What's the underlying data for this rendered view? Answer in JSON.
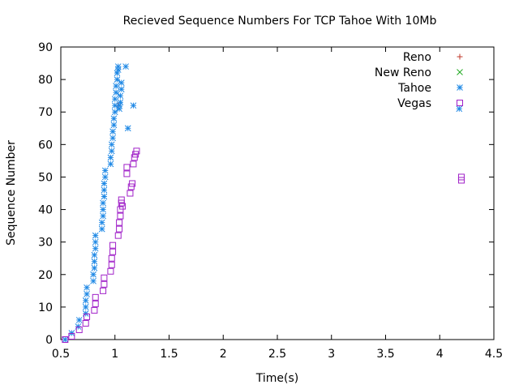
{
  "chart_data": {
    "type": "scatter",
    "title": "Recieved Sequence Numbers For TCP Tahoe With  10Mb",
    "xlabel": "Time(s)",
    "ylabel": "Sequence Number",
    "xlim": [
      0.5,
      4.5
    ],
    "ylim": [
      0,
      90
    ],
    "xticks": [
      0.5,
      1,
      1.5,
      2,
      2.5,
      3,
      3.5,
      4,
      4.5
    ],
    "xtick_labels": [
      "0.5",
      "1",
      "1.5",
      "2",
      "2.5",
      "3",
      "3.5",
      "4",
      "4.5"
    ],
    "yticks": [
      0,
      10,
      20,
      30,
      40,
      50,
      60,
      70,
      80,
      90
    ],
    "ytick_labels": [
      "0",
      "10",
      "20",
      "30",
      "40",
      "50",
      "60",
      "70",
      "80",
      "90"
    ],
    "legend_position": "top-right",
    "series": [
      {
        "name": "Reno",
        "marker": "plus",
        "color": "#c0392b",
        "x": [
          1.03
        ],
        "y": [
          72
        ]
      },
      {
        "name": "New Reno",
        "marker": "cross",
        "color": "#22aa22",
        "x": [],
        "y": []
      },
      {
        "name": "Tahoe",
        "marker": "star",
        "color": "#1e88e5",
        "x": [
          0.54,
          0.6,
          0.66,
          0.67,
          0.73,
          0.73,
          0.73,
          0.74,
          0.74,
          0.8,
          0.8,
          0.81,
          0.81,
          0.81,
          0.82,
          0.82,
          0.82,
          0.88,
          0.88,
          0.89,
          0.89,
          0.89,
          0.9,
          0.9,
          0.9,
          0.91,
          0.91,
          0.96,
          0.96,
          0.97,
          0.97,
          0.98,
          0.98,
          0.99,
          0.99,
          1.0,
          1.0,
          1.0,
          1.01,
          1.01,
          1.02,
          1.02,
          1.03,
          1.03,
          1.04,
          1.04,
          1.05,
          1.05,
          1.06,
          1.06,
          1.1,
          1.12,
          1.17,
          4.18
        ],
        "y": [
          0,
          2,
          4,
          6,
          8,
          10,
          12,
          14,
          16,
          18,
          20,
          22,
          24,
          26,
          28,
          30,
          32,
          34,
          36,
          38,
          40,
          42,
          44,
          46,
          48,
          50,
          52,
          54,
          56,
          58,
          60,
          62,
          64,
          66,
          68,
          70,
          72,
          74,
          76,
          78,
          80,
          82,
          83,
          84,
          71,
          72,
          73,
          75,
          77,
          79,
          84,
          65,
          72,
          71
        ]
      },
      {
        "name": "Vegas",
        "marker": "square",
        "color": "#a020c8",
        "x": [
          0.54,
          0.6,
          0.67,
          0.73,
          0.74,
          0.81,
          0.82,
          0.82,
          0.89,
          0.9,
          0.9,
          0.96,
          0.97,
          0.97,
          0.98,
          0.98,
          1.03,
          1.04,
          1.04,
          1.05,
          1.05,
          1.06,
          1.06,
          1.07,
          1.11,
          1.11,
          1.14,
          1.15,
          1.16,
          1.17,
          1.18,
          1.19,
          1.2,
          4.2,
          4.2
        ],
        "y": [
          0,
          1,
          3,
          5,
          7,
          9,
          11,
          13,
          15,
          17,
          19,
          21,
          23,
          25,
          27,
          29,
          32,
          34,
          36,
          38,
          40,
          42,
          43,
          41,
          51,
          53,
          45,
          47,
          48,
          54,
          56,
          57,
          58,
          49,
          50
        ]
      }
    ]
  }
}
